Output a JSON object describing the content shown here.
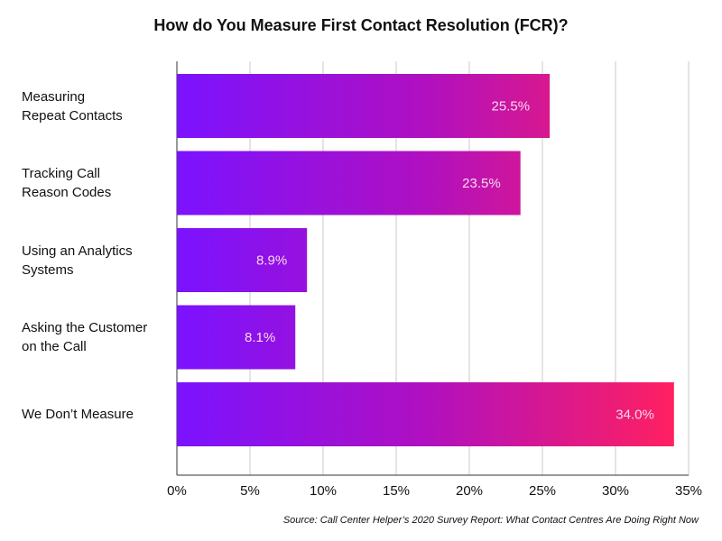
{
  "chart_data": {
    "type": "bar",
    "orientation": "horizontal",
    "title": "How do You Measure First Contact Resolution (FCR)?",
    "categories": [
      [
        "Measuring",
        "Repeat Contacts"
      ],
      [
        "Tracking Call",
        "Reason Codes"
      ],
      [
        "Using an Analytics",
        "Systems"
      ],
      [
        "Asking the Customer",
        "on the Call"
      ],
      [
        "We Don’t Measure"
      ]
    ],
    "values": [
      25.5,
      23.5,
      8.9,
      8.1,
      34.0
    ],
    "data_labels": [
      "25.5%",
      "23.5%",
      "8.9%",
      "8.1%",
      "34.0%"
    ],
    "xlim": [
      0,
      35
    ],
    "xticks": [
      "0%",
      "5%",
      "10%",
      "15%",
      "20%",
      "25%",
      "30%",
      "35%"
    ],
    "grid": true,
    "colors": {
      "gradient_start": "#7b12ff",
      "gradient_mid": "#b010c0",
      "gradient_end": "#ff2060",
      "label": "#f8d8f0"
    },
    "source": "Source: Call Center Helper’s 2020 Survey Report: What Contact Centres Are Doing Right Now"
  }
}
